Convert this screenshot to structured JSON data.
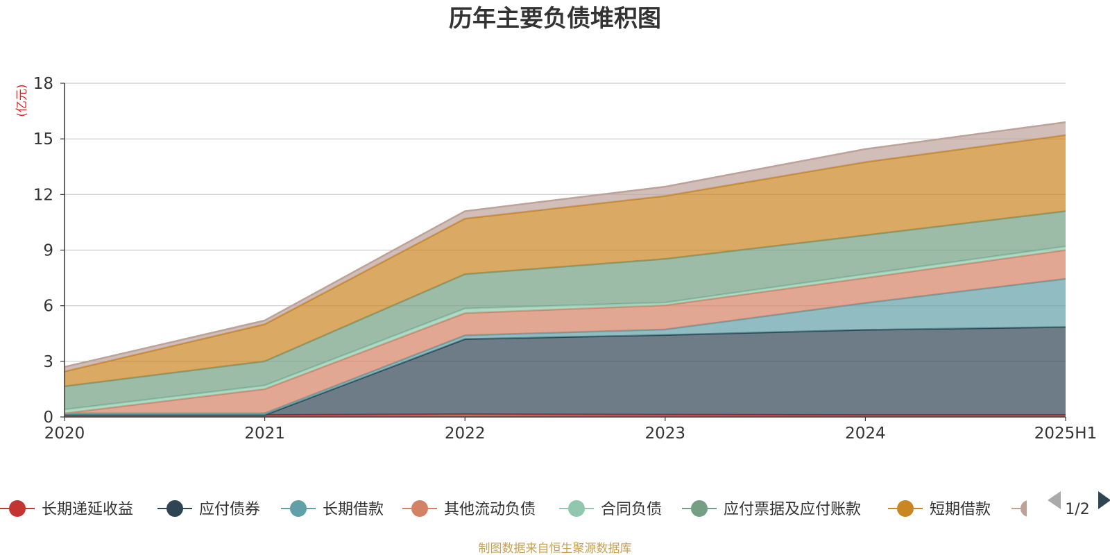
{
  "chart_data": {
    "type": "area",
    "stacked": true,
    "title": "历年主要负债堆积图",
    "ylabel": "(亿元)",
    "ylim": [
      0,
      18
    ],
    "yticks": [
      0,
      3,
      6,
      9,
      12,
      15,
      18
    ],
    "categories": [
      "2020",
      "2021",
      "2022",
      "2023",
      "2024",
      "2025H1"
    ],
    "grid": true,
    "series": [
      {
        "name": "长期递延收益",
        "color": "#c23531",
        "values": [
          0.1,
          0.1,
          0.15,
          0.12,
          0.1,
          0.1
        ]
      },
      {
        "name": "应付债券",
        "color": "#2f4554",
        "values": [
          0.0,
          0.0,
          4.05,
          4.3,
          4.6,
          4.75
        ]
      },
      {
        "name": "长期借款",
        "color": "#61a0a8",
        "values": [
          0.1,
          0.1,
          0.2,
          0.3,
          1.45,
          2.6
        ]
      },
      {
        "name": "其他流动负债",
        "color": "#d48265",
        "values": [
          0.0,
          1.3,
          1.2,
          1.3,
          1.35,
          1.55
        ]
      },
      {
        "name": "合同负债",
        "color": "#91c7ae",
        "values": [
          0.2,
          0.2,
          0.25,
          0.15,
          0.2,
          0.2
        ]
      },
      {
        "name": "应付票据及应付账款",
        "color": "#749f83",
        "values": [
          1.25,
          1.3,
          1.85,
          2.35,
          2.1,
          1.9
        ]
      },
      {
        "name": "短期借款",
        "color": "#ca8622",
        "values": [
          0.8,
          2.0,
          3.0,
          3.4,
          3.95,
          4.1
        ]
      },
      {
        "name": "",
        "color": "#bda29a",
        "values": [
          0.25,
          0.2,
          0.4,
          0.5,
          0.7,
          0.7
        ]
      }
    ]
  },
  "legend": {
    "page": "1/2"
  },
  "footer": "制图数据来自恒生聚源数据库"
}
